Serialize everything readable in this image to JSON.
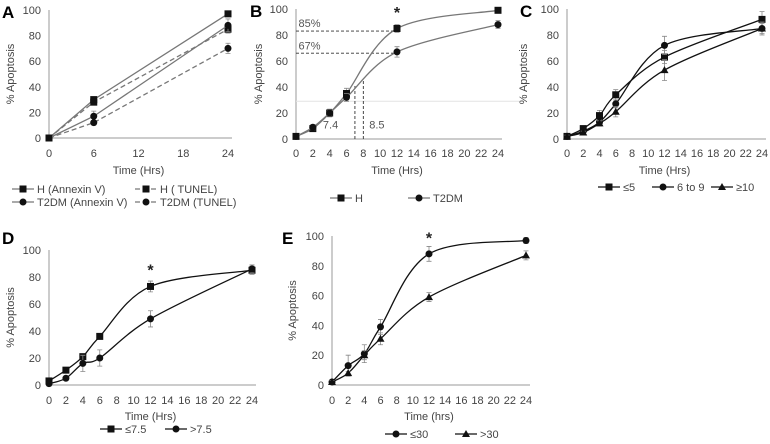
{
  "chart_data": [
    {
      "panel": "A",
      "type": "line",
      "xlabel": "Time (Hrs)",
      "ylabel": "% Apoptosis",
      "xlim": [
        0,
        24
      ],
      "ylim": [
        0,
        100
      ],
      "xticks": [
        0,
        6,
        12,
        18,
        24
      ],
      "yticks": [
        0,
        20,
        40,
        60,
        80,
        100
      ],
      "x": [
        0,
        6,
        24
      ],
      "smooth": false,
      "line_color": "#777777",
      "series": [
        {
          "name": "H (Annexin V)",
          "marker": "square",
          "dash": false,
          "values": [
            0,
            30,
            97
          ],
          "err": [
            0,
            2,
            1
          ]
        },
        {
          "name": "H ( TUNEL)",
          "marker": "square",
          "dash": true,
          "values": [
            0,
            28,
            85
          ],
          "err": [
            0,
            2,
            3
          ]
        },
        {
          "name": "T2DM (Annexin V)",
          "marker": "circle",
          "dash": false,
          "values": [
            0,
            17,
            88
          ],
          "err": [
            0,
            4,
            5
          ]
        },
        {
          "name": "T2DM  (TUNEL)",
          "marker": "circle",
          "dash": true,
          "values": [
            0,
            12,
            70
          ],
          "err": [
            0,
            1,
            4
          ]
        }
      ],
      "annotations": []
    },
    {
      "panel": "B",
      "type": "line",
      "xlabel": "Time (Hrs)",
      "ylabel": "% Apoptosis",
      "xlim": [
        0,
        24
      ],
      "ylim": [
        0,
        100
      ],
      "xticks": [
        0,
        2,
        4,
        6,
        8,
        10,
        12,
        14,
        16,
        18,
        20,
        22,
        24
      ],
      "yticks": [
        0,
        20,
        40,
        60,
        80,
        100
      ],
      "x": [
        0,
        2,
        4,
        6,
        12,
        24
      ],
      "smooth": true,
      "line_color": "#777777",
      "series": [
        {
          "name": "H",
          "marker": "square",
          "dash": false,
          "values": [
            2,
            8,
            20,
            35,
            85,
            99
          ],
          "err": [
            1,
            2,
            3,
            4,
            3,
            1
          ]
        },
        {
          "name": "T2DM",
          "marker": "circle",
          "dash": false,
          "values": [
            2,
            9,
            20,
            32,
            67,
            88
          ],
          "err": [
            1,
            2,
            2,
            3,
            4,
            3
          ]
        }
      ],
      "annotations": [
        {
          "text": "85%",
          "x": 0.3,
          "y": 86
        },
        {
          "text": "67%",
          "x": 0.3,
          "y": 69
        },
        {
          "text": "7.4",
          "x": 3.2,
          "y": 8
        },
        {
          "text": "8.5",
          "x": 8.7,
          "y": 8
        },
        {
          "text": "*",
          "x": 12,
          "y": 93
        }
      ],
      "reference_lines": [
        {
          "from": [
            0,
            83
          ],
          "to": [
            12,
            83
          ]
        },
        {
          "from": [
            0,
            66
          ],
          "to": [
            12,
            66
          ]
        },
        {
          "from": [
            7,
            0
          ],
          "to": [
            7,
            41
          ]
        },
        {
          "from": [
            8,
            0
          ],
          "to": [
            8,
            46
          ]
        }
      ]
    },
    {
      "panel": "C",
      "type": "line",
      "xlabel": "Time (Hrs)",
      "ylabel": "% Apoptosis",
      "xlim": [
        0,
        24
      ],
      "ylim": [
        0,
        100
      ],
      "xticks": [
        0,
        2,
        4,
        6,
        8,
        10,
        12,
        14,
        16,
        18,
        20,
        22,
        24
      ],
      "yticks": [
        0,
        20,
        40,
        60,
        80,
        100
      ],
      "x": [
        0,
        2,
        4,
        6,
        12,
        24
      ],
      "smooth": true,
      "line_color": "#111111",
      "series": [
        {
          "name": "≤5",
          "marker": "square",
          "dash": false,
          "values": [
            2,
            8,
            18,
            34,
            63,
            92
          ],
          "err": [
            1,
            1,
            4,
            4,
            5,
            6
          ]
        },
        {
          "name": "6 to 9",
          "marker": "circle",
          "dash": false,
          "values": [
            2,
            6,
            13,
            27,
            72,
            85
          ],
          "err": [
            1,
            1,
            2,
            3,
            7,
            5
          ]
        },
        {
          "name": "≥10",
          "marker": "triangle",
          "dash": false,
          "values": [
            2,
            5,
            12,
            21,
            53,
            85
          ],
          "err": [
            1,
            1,
            2,
            4,
            8,
            4
          ]
        }
      ],
      "annotations": []
    },
    {
      "panel": "D",
      "type": "line",
      "xlabel": "Time (Hrs)",
      "ylabel": "% Apoptosis",
      "xlim": [
        0,
        24
      ],
      "ylim": [
        0,
        100
      ],
      "xticks": [
        0,
        2,
        4,
        6,
        8,
        10,
        12,
        14,
        16,
        18,
        20,
        22,
        24
      ],
      "yticks": [
        0,
        20,
        40,
        60,
        80,
        100
      ],
      "x": [
        0,
        2,
        4,
        6,
        12,
        24
      ],
      "smooth": true,
      "line_color": "#111111",
      "series": [
        {
          "name": "≤7.5",
          "marker": "square",
          "dash": false,
          "values": [
            3,
            11,
            21,
            36,
            73,
            85
          ],
          "err": [
            1,
            1,
            2,
            2,
            4,
            3
          ]
        },
        {
          "name": ">7.5",
          "marker": "circle",
          "dash": false,
          "values": [
            1,
            5,
            16,
            20,
            49,
            86
          ],
          "err": [
            1,
            1,
            6,
            6,
            6,
            3
          ]
        }
      ],
      "annotations": [
        {
          "text": "*",
          "x": 12,
          "y": 81
        }
      ]
    },
    {
      "panel": "E",
      "type": "line",
      "xlabel": "Time (hrs)",
      "ylabel": "% Apoptosis",
      "xlim": [
        0,
        24
      ],
      "ylim": [
        0,
        100
      ],
      "xticks": [
        0,
        2,
        4,
        6,
        8,
        10,
        12,
        14,
        16,
        18,
        20,
        22,
        24
      ],
      "yticks": [
        0,
        20,
        40,
        60,
        80,
        100
      ],
      "x": [
        0,
        2,
        4,
        6,
        12,
        24
      ],
      "smooth": true,
      "line_color": "#111111",
      "series": [
        {
          "name": "≤30",
          "marker": "circle",
          "dash": false,
          "values": [
            2,
            13,
            21,
            39,
            88,
            97
          ],
          "err": [
            1,
            7,
            6,
            5,
            5,
            2
          ]
        },
        {
          "name": ">30",
          "marker": "triangle",
          "dash": false,
          "values": [
            2,
            8,
            20,
            31,
            59,
            87
          ],
          "err": [
            1,
            1,
            3,
            4,
            3,
            3
          ]
        }
      ],
      "annotations": [
        {
          "text": "*",
          "x": 12,
          "y": 95
        }
      ]
    }
  ]
}
